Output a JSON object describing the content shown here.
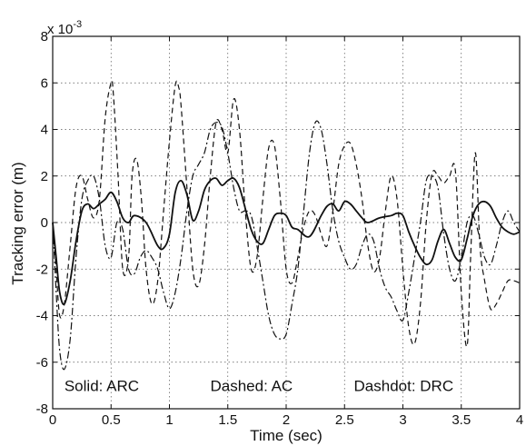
{
  "chart_data": {
    "type": "line",
    "title": "",
    "xlabel": "Time (sec)",
    "ylabel": "Tracking error (m)",
    "y_exponent": "x 10",
    "y_exponent_power": "-3",
    "xlim": [
      0,
      4
    ],
    "ylim": [
      -8,
      8
    ],
    "xticks": [
      0,
      0.5,
      1,
      1.5,
      2,
      2.5,
      3,
      3.5,
      4
    ],
    "xtick_labels": [
      "0",
      "0.5",
      "1",
      "1.5",
      "2",
      "2.5",
      "3",
      "3.5",
      "4"
    ],
    "yticks": [
      -8,
      -6,
      -4,
      -2,
      0,
      2,
      4,
      6,
      8
    ],
    "ytick_labels": [
      "-8",
      "-6",
      "-4",
      "-2",
      "0",
      "2",
      "4",
      "6",
      "8"
    ],
    "grid": true,
    "annotations": [
      {
        "text": "Solid: ARC",
        "x": 0.1,
        "y": -7
      },
      {
        "text": "Dashed: AC",
        "x": 1.35,
        "y": -7
      },
      {
        "text": "Dashdot: DRC",
        "x": 2.58,
        "y": -7
      }
    ],
    "series": [
      {
        "style": "solid",
        "x": [
          0,
          0.03,
          0.06,
          0.1,
          0.15,
          0.2,
          0.25,
          0.3,
          0.35,
          0.4,
          0.45,
          0.5,
          0.55,
          0.6,
          0.65,
          0.7,
          0.8,
          0.9,
          0.95,
          1.0,
          1.05,
          1.1,
          1.15,
          1.2,
          1.25,
          1.3,
          1.35,
          1.4,
          1.45,
          1.5,
          1.55,
          1.6,
          1.65,
          1.7,
          1.75,
          1.8,
          1.85,
          1.9,
          1.95,
          2.0,
          2.05,
          2.1,
          2.2,
          2.3,
          2.35,
          2.4,
          2.45,
          2.5,
          2.55,
          2.6,
          2.65,
          2.7,
          2.8,
          2.9,
          2.95,
          3.0,
          3.05,
          3.1,
          3.15,
          3.2,
          3.25,
          3.3,
          3.35,
          3.4,
          3.45,
          3.5,
          3.55,
          3.6,
          3.65,
          3.7,
          3.75,
          3.8,
          3.85,
          3.9,
          3.95,
          4.0
        ],
        "y": [
          0,
          -1.5,
          -3.0,
          -3.5,
          -2.5,
          -0.8,
          0.5,
          0.8,
          0.6,
          0.8,
          1.0,
          1.3,
          0.9,
          0.2,
          0.0,
          0.3,
          0.0,
          -1.0,
          -1.1,
          -0.5,
          1.3,
          1.8,
          1.2,
          0.1,
          0.5,
          1.4,
          1.8,
          1.9,
          1.6,
          1.8,
          1.9,
          1.5,
          0.6,
          -0.3,
          -0.8,
          -0.9,
          -0.3,
          0.3,
          0.4,
          0.3,
          -0.2,
          -0.3,
          -0.6,
          0.3,
          0.7,
          0.8,
          0.5,
          0.9,
          0.8,
          0.5,
          0.2,
          0.0,
          0.2,
          0.3,
          0.4,
          0.3,
          -0.4,
          -1.0,
          -1.5,
          -1.8,
          -1.6,
          -0.8,
          -0.3,
          -0.9,
          -1.5,
          -1.6,
          -0.7,
          0.3,
          0.8,
          0.9,
          0.7,
          0.2,
          -0.2,
          -0.4,
          -0.5,
          -0.4
        ]
      },
      {
        "style": "dashed",
        "x": [
          0,
          0.03,
          0.06,
          0.1,
          0.15,
          0.2,
          0.25,
          0.3,
          0.35,
          0.4,
          0.45,
          0.5,
          0.52,
          0.56,
          0.6,
          0.65,
          0.68,
          0.72,
          0.76,
          0.8,
          0.85,
          0.9,
          0.95,
          1.0,
          1.05,
          1.08,
          1.1,
          1.15,
          1.2,
          1.25,
          1.3,
          1.35,
          1.4,
          1.45,
          1.5,
          1.55,
          1.6,
          1.65,
          1.7,
          1.75,
          1.8,
          1.85,
          1.9,
          1.95,
          2.0,
          2.05,
          2.1,
          2.15,
          2.2,
          2.25,
          2.3,
          2.35,
          2.4,
          2.45,
          2.5,
          2.55,
          2.6,
          2.65,
          2.7,
          2.75,
          2.8,
          2.85,
          2.9,
          2.95,
          3.0,
          3.05,
          3.1,
          3.15,
          3.2,
          3.25,
          3.3,
          3.35,
          3.4,
          3.45,
          3.5,
          3.55,
          3.58,
          3.62,
          3.66,
          3.7,
          3.75,
          3.8,
          3.85,
          3.9,
          3.95,
          4.0
        ],
        "y": [
          0,
          -2.0,
          -4.0,
          -3.5,
          -1.0,
          1.5,
          2.0,
          1.0,
          0.2,
          1.0,
          4.5,
          6.0,
          5.5,
          2.0,
          -2.0,
          -1.5,
          2.0,
          2.7,
          1.0,
          -2.0,
          -3.5,
          -2.5,
          0.5,
          3.5,
          5.9,
          5.8,
          5.0,
          1.5,
          -2.0,
          -2.7,
          -1.0,
          2.0,
          4.3,
          4.0,
          3.0,
          5.3,
          4.0,
          0.5,
          -2.0,
          -1.5,
          1.0,
          3.2,
          3.3,
          1.0,
          -2.0,
          -2.6,
          -1.5,
          -0.2,
          0.5,
          0.3,
          -0.5,
          -1.0,
          0.5,
          2.5,
          3.3,
          3.4,
          2.5,
          1.0,
          -1.0,
          -2.1,
          -1.5,
          0.5,
          2.0,
          1.0,
          -2.0,
          -4.5,
          -5.2,
          -3.5,
          0.0,
          2.1,
          2.0,
          1.7,
          2.0,
          2.2,
          -3.0,
          -5.3,
          -1.5,
          3.0,
          -1.0,
          -2.5,
          -3.7,
          -3.5,
          -3.0,
          -2.5,
          -2.5,
          -2.6
        ]
      },
      {
        "style": "dashdot",
        "x": [
          0,
          0.03,
          0.06,
          0.1,
          0.15,
          0.2,
          0.25,
          0.3,
          0.35,
          0.4,
          0.45,
          0.5,
          0.55,
          0.6,
          0.65,
          0.7,
          0.75,
          0.8,
          0.85,
          0.9,
          0.95,
          1.0,
          1.05,
          1.1,
          1.15,
          1.2,
          1.25,
          1.3,
          1.35,
          1.4,
          1.45,
          1.5,
          1.55,
          1.6,
          1.65,
          1.7,
          1.75,
          1.8,
          1.85,
          1.9,
          1.95,
          2.0,
          2.05,
          2.1,
          2.15,
          2.2,
          2.25,
          2.3,
          2.35,
          2.4,
          2.45,
          2.5,
          2.55,
          2.6,
          2.65,
          2.7,
          2.75,
          2.8,
          2.85,
          2.9,
          2.95,
          3.0,
          3.05,
          3.1,
          3.15,
          3.2,
          3.25,
          3.3,
          3.35,
          3.4,
          3.45,
          3.5,
          3.55,
          3.6,
          3.65,
          3.7,
          3.75,
          3.8,
          3.85,
          3.9,
          3.95,
          4.0
        ],
        "y": [
          0,
          -3.0,
          -5.5,
          -6.3,
          -5.0,
          -1.5,
          1.0,
          1.8,
          2.0,
          1.0,
          -1.0,
          -1.5,
          0.0,
          -0.3,
          -2.0,
          -2.2,
          -1.5,
          -1.2,
          -1.5,
          -2.0,
          -3.0,
          -3.7,
          -3.0,
          -1.5,
          0.5,
          2.0,
          2.5,
          3.0,
          4.0,
          4.3,
          4.1,
          3.0,
          1.5,
          0.5,
          0.5,
          0.3,
          -1.0,
          -2.5,
          -4.0,
          -4.8,
          -5.0,
          -4.8,
          -3.5,
          -2.0,
          0.5,
          3.0,
          4.3,
          4.0,
          2.5,
          0.5,
          -0.8,
          -1.5,
          -2.0,
          -1.8,
          -1.0,
          -0.5,
          -0.8,
          -2.0,
          -2.8,
          -3.2,
          -3.8,
          -4.2,
          -3.0,
          -1.5,
          0.0,
          1.8,
          2.0,
          1.5,
          -0.5,
          -2.0,
          -2.5,
          -1.5,
          0.0,
          0.3,
          -0.5,
          -1.5,
          -1.8,
          -1.0,
          0.0,
          0.5,
          0.0,
          -0.4
        ]
      }
    ]
  }
}
